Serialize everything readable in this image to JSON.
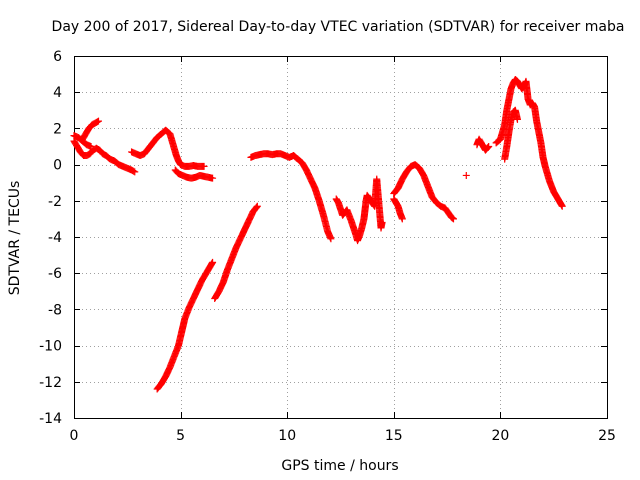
{
  "chart_data": {
    "type": "scatter",
    "title": "Day 200 of 2017, Sidereal Day-to-day VTEC variation (SDTVAR) for receiver maba",
    "xlabel": "GPS time / hours",
    "ylabel": "SDTVAR / TECUs",
    "xlim": [
      0,
      25
    ],
    "ylim": [
      -14,
      6
    ],
    "x_ticks": [
      0,
      5,
      10,
      15,
      20,
      25
    ],
    "x_tick_labels": [
      "0",
      "5",
      "10",
      "15",
      "20",
      "25"
    ],
    "y_ticks": [
      6,
      4,
      2,
      0,
      -2,
      -4,
      -6,
      -8,
      -10,
      -12,
      -14
    ],
    "y_tick_labels": [
      "6",
      "4",
      "2",
      "0",
      "-2",
      "-4",
      "-6",
      "-8",
      "-10",
      "-12",
      "-14"
    ],
    "grid": true,
    "marker": "+",
    "series": [
      {
        "name": "SDTVAR",
        "color": "#ff0000",
        "segments": [
          [
            [
              0.0,
              1.6
            ],
            [
              0.2,
              1.5
            ],
            [
              0.4,
              1.3
            ],
            [
              0.6,
              1.1
            ],
            [
              0.8,
              1.0
            ]
          ],
          [
            [
              0.0,
              1.3
            ],
            [
              0.15,
              1.0
            ],
            [
              0.3,
              0.7
            ],
            [
              0.45,
              0.5
            ],
            [
              0.6,
              0.5
            ],
            [
              0.75,
              0.6
            ],
            [
              0.9,
              0.8
            ],
            [
              1.05,
              0.9
            ],
            [
              1.2,
              0.8
            ],
            [
              1.35,
              0.6
            ],
            [
              1.5,
              0.5
            ],
            [
              1.7,
              0.3
            ],
            [
              1.9,
              0.2
            ],
            [
              2.1,
              0.0
            ],
            [
              2.3,
              -0.1
            ],
            [
              2.5,
              -0.2
            ],
            [
              2.7,
              -0.3
            ],
            [
              2.85,
              -0.4
            ]
          ],
          [
            [
              0.4,
              1.4
            ],
            [
              0.55,
              1.7
            ],
            [
              0.7,
              2.0
            ],
            [
              0.85,
              2.2
            ],
            [
              1.0,
              2.3
            ],
            [
              1.15,
              2.4
            ]
          ],
          [
            [
              2.7,
              0.7
            ],
            [
              2.9,
              0.6
            ],
            [
              3.1,
              0.5
            ],
            [
              3.3,
              0.6
            ],
            [
              3.5,
              0.9
            ],
            [
              3.7,
              1.2
            ],
            [
              3.9,
              1.5
            ],
            [
              4.1,
              1.7
            ],
            [
              4.3,
              1.9
            ],
            [
              4.5,
              1.7
            ],
            [
              4.6,
              1.3
            ],
            [
              4.7,
              0.9
            ],
            [
              4.8,
              0.5
            ],
            [
              4.9,
              0.2
            ],
            [
              5.0,
              0.0
            ],
            [
              5.2,
              -0.1
            ],
            [
              5.4,
              -0.1
            ],
            [
              5.6,
              -0.05
            ],
            [
              5.8,
              -0.1
            ],
            [
              6.0,
              -0.1
            ],
            [
              6.1,
              -0.1
            ]
          ],
          [
            [
              4.75,
              -0.3
            ],
            [
              4.9,
              -0.5
            ],
            [
              5.1,
              -0.6
            ],
            [
              5.3,
              -0.7
            ],
            [
              5.5,
              -0.75
            ],
            [
              5.7,
              -0.7
            ],
            [
              5.9,
              -0.6
            ],
            [
              6.1,
              -0.65
            ],
            [
              6.3,
              -0.7
            ],
            [
              6.5,
              -0.75
            ]
          ],
          [
            [
              3.9,
              -12.4
            ],
            [
              4.1,
              -12.1
            ],
            [
              4.3,
              -11.7
            ],
            [
              4.5,
              -11.2
            ],
            [
              4.7,
              -10.6
            ],
            [
              4.9,
              -10.0
            ],
            [
              5.0,
              -9.5
            ],
            [
              5.1,
              -9.0
            ],
            [
              5.2,
              -8.5
            ],
            [
              5.4,
              -7.9
            ],
            [
              5.6,
              -7.4
            ],
            [
              5.8,
              -6.9
            ],
            [
              6.0,
              -6.4
            ],
            [
              6.2,
              -6.0
            ],
            [
              6.4,
              -5.6
            ],
            [
              6.5,
              -5.4
            ]
          ],
          [
            [
              6.6,
              -7.4
            ],
            [
              6.8,
              -7.0
            ],
            [
              7.0,
              -6.5
            ],
            [
              7.2,
              -5.8
            ],
            [
              7.4,
              -5.2
            ],
            [
              7.6,
              -4.6
            ],
            [
              7.8,
              -4.1
            ],
            [
              8.0,
              -3.6
            ],
            [
              8.2,
              -3.1
            ],
            [
              8.4,
              -2.6
            ],
            [
              8.6,
              -2.3
            ]
          ],
          [
            [
              8.3,
              0.4
            ],
            [
              8.5,
              0.5
            ],
            [
              8.7,
              0.55
            ],
            [
              8.9,
              0.6
            ],
            [
              9.1,
              0.6
            ],
            [
              9.3,
              0.55
            ],
            [
              9.5,
              0.6
            ],
            [
              9.7,
              0.6
            ],
            [
              9.9,
              0.5
            ],
            [
              10.1,
              0.4
            ],
            [
              10.3,
              0.5
            ],
            [
              10.5,
              0.3
            ],
            [
              10.7,
              0.1
            ],
            [
              10.9,
              -0.3
            ],
            [
              11.1,
              -0.8
            ],
            [
              11.3,
              -1.3
            ],
            [
              11.5,
              -2.0
            ],
            [
              11.7,
              -2.8
            ],
            [
              11.9,
              -3.7
            ],
            [
              12.05,
              -4.1
            ]
          ],
          [
            [
              12.3,
              -1.9
            ],
            [
              12.4,
              -2.1
            ],
            [
              12.6,
              -2.8
            ],
            [
              12.8,
              -2.5
            ],
            [
              13.0,
              -3.1
            ],
            [
              13.2,
              -3.8
            ],
            [
              13.3,
              -4.2
            ],
            [
              13.4,
              -3.9
            ],
            [
              13.5,
              -3.5
            ],
            [
              13.6,
              -3.0
            ],
            [
              13.65,
              -2.5
            ],
            [
              13.7,
              -2.0
            ],
            [
              13.75,
              -1.7
            ],
            [
              14.1,
              -2.3
            ],
            [
              14.2,
              -0.8
            ],
            [
              14.4,
              -3.5
            ],
            [
              14.45,
              -3.2
            ]
          ],
          [
            [
              15.0,
              -1.9
            ],
            [
              15.1,
              -2.1
            ],
            [
              15.2,
              -2.3
            ],
            [
              15.3,
              -2.7
            ],
            [
              15.4,
              -3.0
            ]
          ],
          [
            [
              15.0,
              -1.6
            ],
            [
              15.2,
              -1.3
            ],
            [
              15.4,
              -0.8
            ],
            [
              15.6,
              -0.4
            ],
            [
              15.8,
              -0.1
            ],
            [
              16.0,
              0.0
            ],
            [
              16.2,
              -0.2
            ],
            [
              16.4,
              -0.6
            ],
            [
              16.6,
              -1.2
            ],
            [
              16.8,
              -1.8
            ],
            [
              17.0,
              -2.1
            ],
            [
              17.2,
              -2.3
            ],
            [
              17.4,
              -2.4
            ],
            [
              17.7,
              -2.9
            ],
            [
              17.8,
              -3.0
            ]
          ],
          [
            [
              18.4,
              -0.6
            ]
          ],
          [
            [
              18.9,
              1.1
            ],
            [
              19.0,
              1.4
            ],
            [
              19.2,
              1.0
            ],
            [
              19.3,
              0.8
            ],
            [
              19.45,
              1.0
            ]
          ],
          [
            [
              19.8,
              1.2
            ],
            [
              20.0,
              1.4
            ],
            [
              20.2,
              2.2
            ],
            [
              20.3,
              3.0
            ],
            [
              20.4,
              3.6
            ],
            [
              20.5,
              4.2
            ],
            [
              20.6,
              4.5
            ],
            [
              20.7,
              4.7
            ],
            [
              20.8,
              4.6
            ],
            [
              20.9,
              4.4
            ],
            [
              21.0,
              4.2
            ],
            [
              21.1,
              4.3
            ],
            [
              21.2,
              4.6
            ],
            [
              21.3,
              3.6
            ],
            [
              21.4,
              3.3
            ],
            [
              21.5,
              3.4
            ],
            [
              21.6,
              3.2
            ],
            [
              21.7,
              2.4
            ],
            [
              21.8,
              1.8
            ],
            [
              21.9,
              1.2
            ],
            [
              22.0,
              0.4
            ],
            [
              22.1,
              -0.1
            ],
            [
              22.2,
              -0.5
            ],
            [
              22.3,
              -0.9
            ],
            [
              22.4,
              -1.2
            ],
            [
              22.5,
              -1.5
            ],
            [
              22.6,
              -1.7
            ],
            [
              22.7,
              -1.9
            ],
            [
              22.8,
              -2.1
            ],
            [
              22.9,
              -2.3
            ]
          ],
          [
            [
              20.2,
              0.3
            ],
            [
              20.3,
              1.0
            ],
            [
              20.4,
              1.8
            ],
            [
              20.5,
              2.5
            ],
            [
              20.6,
              2.9
            ],
            [
              20.7,
              3.0
            ],
            [
              20.8,
              2.5
            ]
          ]
        ]
      }
    ]
  }
}
